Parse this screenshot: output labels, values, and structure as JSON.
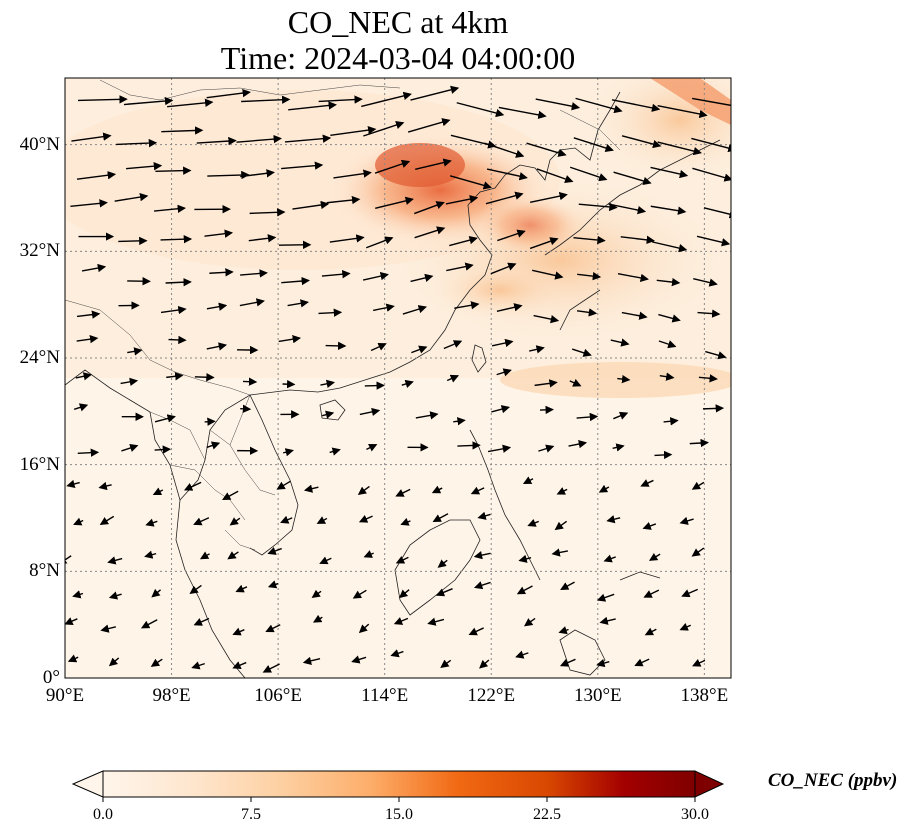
{
  "title": {
    "line1": "CO_NEC at 4km",
    "line2": "Time: 2024-03-04 04:00:00"
  },
  "map": {
    "projection": "PlateCarree",
    "lon_range": [
      90,
      140
    ],
    "lat_range": [
      0,
      45
    ],
    "gridlines": "dotted gray",
    "lon_ticks": [
      {
        "value": 90,
        "label": "90°E"
      },
      {
        "value": 98,
        "label": "98°E"
      },
      {
        "value": 106,
        "label": "106°E"
      },
      {
        "value": 114,
        "label": "114°E"
      },
      {
        "value": 122,
        "label": "122°E"
      },
      {
        "value": 130,
        "label": "130°E"
      },
      {
        "value": 138,
        "label": "138°E"
      }
    ],
    "lat_ticks": [
      {
        "value": 0,
        "label": "0°"
      },
      {
        "value": 8,
        "label": "8°N"
      },
      {
        "value": 16,
        "label": "16°N"
      },
      {
        "value": 24,
        "label": "24°N"
      },
      {
        "value": 32,
        "label": "32°N"
      },
      {
        "value": 40,
        "label": "40°N"
      }
    ],
    "field": "CO_NEC concentration, highest over the North China Plain / Bohai region, secondary plume over Yangtze delta and Japan",
    "wind": "westerly at mid-latitudes, weak easterly/northeasterly in the tropics"
  },
  "colorbar": {
    "label": "CO_NEC (ppbv)",
    "min": 0.0,
    "max": 30.0,
    "extend": "both",
    "colormap": [
      "#fff5eb",
      "#fdd49e",
      "#fdae6b",
      "#f16913",
      "#d94801",
      "#a30000",
      "#7f0000"
    ],
    "ticks": [
      {
        "value": 0.0,
        "label": "0.0"
      },
      {
        "value": 7.5,
        "label": "7.5"
      },
      {
        "value": 15.0,
        "label": "15.0"
      },
      {
        "value": 22.5,
        "label": "22.5"
      },
      {
        "value": 30.0,
        "label": "30.0"
      }
    ]
  }
}
